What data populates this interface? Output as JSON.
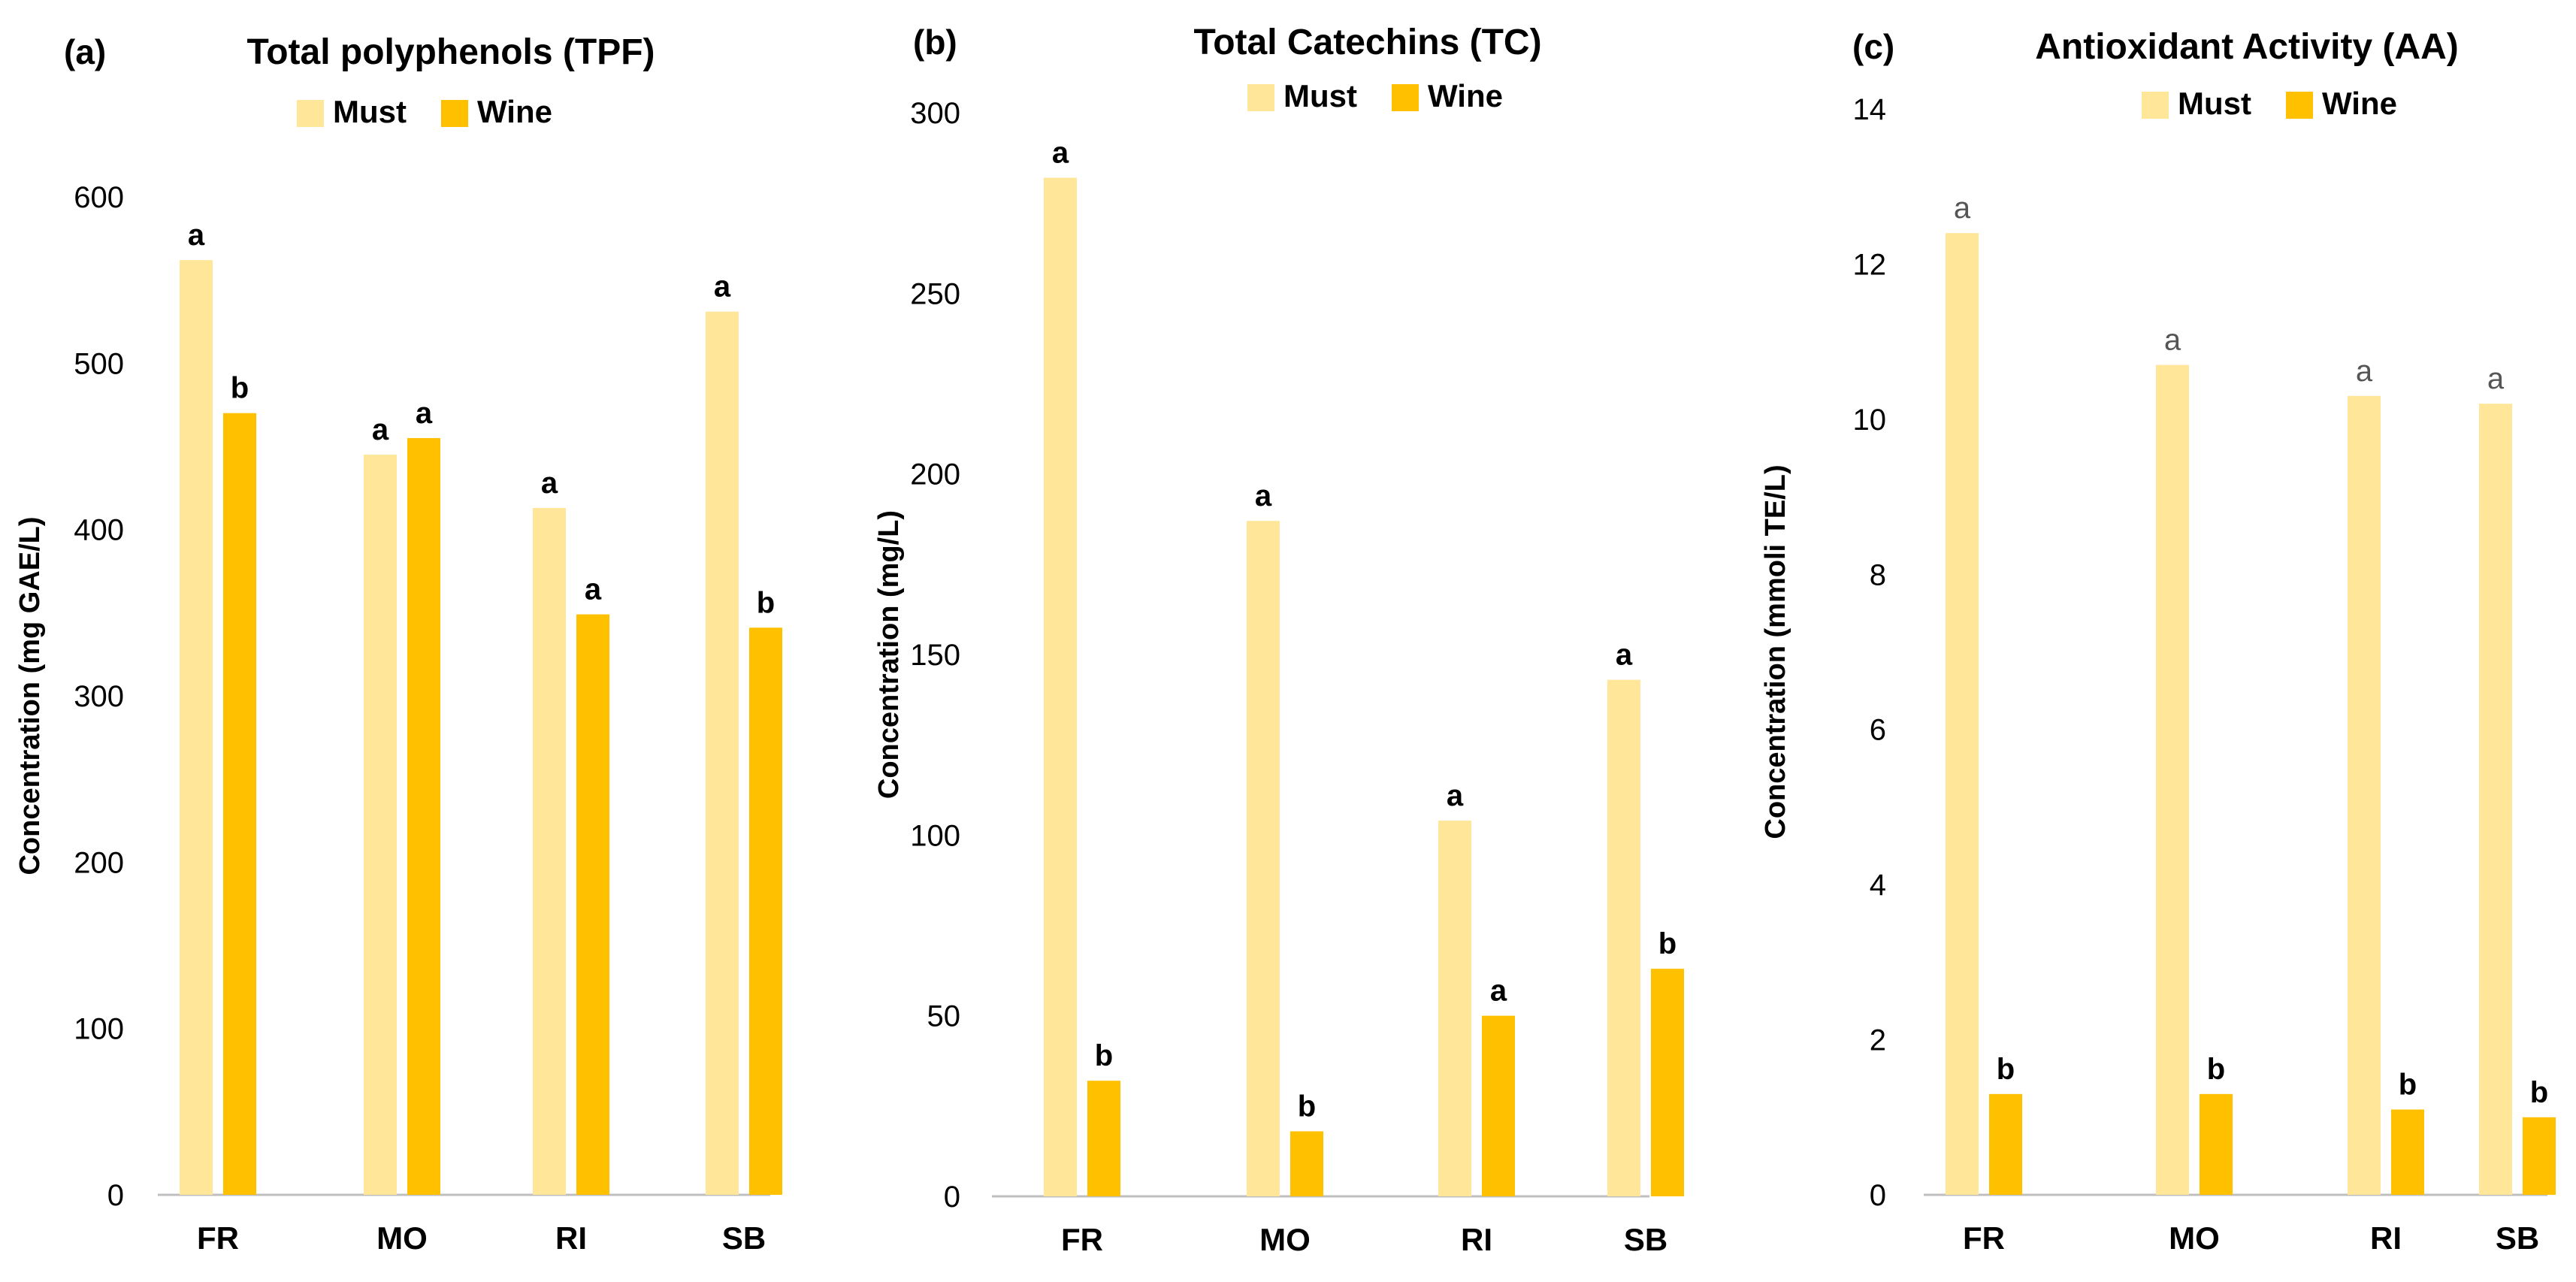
{
  "chart_data": [
    {
      "type": "bar",
      "panel_label": "(a)",
      "title": "Total polyphenols (TPF)",
      "xlabel": "",
      "ylabel": "Concentration (mg GAE/L)",
      "ylim": [
        0,
        600
      ],
      "yticks": [
        0,
        100,
        200,
        300,
        400,
        500,
        600
      ],
      "categories": [
        "FR",
        "MO",
        "RI",
        "SB"
      ],
      "series": [
        {
          "name": "Must",
          "color": "#FFE699",
          "values": [
            562,
            445,
            413,
            531
          ],
          "labels": [
            "a",
            "a",
            "a",
            "a"
          ]
        },
        {
          "name": "Wine",
          "color": "#FFC000",
          "values": [
            470,
            455,
            349,
            341
          ],
          "labels": [
            "b",
            "a",
            "a",
            "b"
          ]
        }
      ],
      "legend": "top-center"
    },
    {
      "type": "bar",
      "panel_label": "(b)",
      "title": "Total Catechins (TC)",
      "xlabel": "",
      "ylabel": "Concentration (mg/L)",
      "ylim": [
        0,
        300
      ],
      "yticks": [
        0,
        50,
        100,
        150,
        200,
        250,
        300
      ],
      "categories": [
        "FR",
        "MO",
        "RI",
        "SB"
      ],
      "series": [
        {
          "name": "Must",
          "color": "#FFE699",
          "values": [
            282,
            187,
            104,
            143
          ],
          "labels": [
            "a",
            "a",
            "a",
            "a"
          ]
        },
        {
          "name": "Wine",
          "color": "#FFC000",
          "values": [
            32,
            18,
            50,
            63
          ],
          "labels": [
            "b",
            "b",
            "a",
            "b"
          ]
        }
      ],
      "legend": "top-center"
    },
    {
      "type": "bar",
      "panel_label": "(c)",
      "title": "Antioxidant Activity (AA)",
      "xlabel": "",
      "ylabel": "Concentration (mmoli TE/L)",
      "ylim": [
        0,
        14
      ],
      "yticks": [
        0,
        2,
        4,
        6,
        8,
        10,
        12,
        14
      ],
      "categories": [
        "FR",
        "MO",
        "RI",
        "SB"
      ],
      "series": [
        {
          "name": "Must",
          "color": "#FFE699",
          "values": [
            12.4,
            10.7,
            10.3,
            10.2
          ],
          "labels": [
            "a",
            "a",
            "a",
            "a"
          ]
        },
        {
          "name": "Wine",
          "color": "#FFC000",
          "values": [
            1.3,
            1.3,
            1.1,
            1.0
          ],
          "labels": [
            "b",
            "b",
            "b",
            "b"
          ]
        }
      ],
      "legend": "top-center"
    }
  ]
}
